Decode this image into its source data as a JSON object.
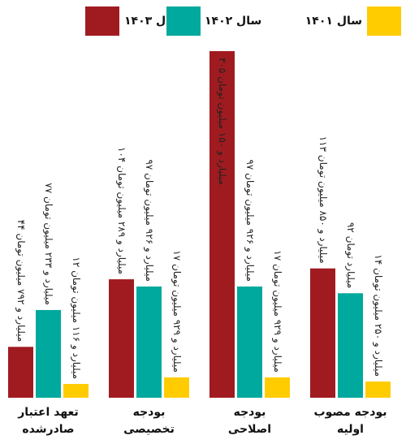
{
  "chart_data": {
    "type": "bar",
    "categories": [
      [
        "تعهد اعتبار",
        "صادرشده"
      ],
      [
        "بودجه",
        "تخصیصی"
      ],
      [
        "بودجه",
        "اصلاحی"
      ],
      [
        "بودجه مصوب",
        "اولیه"
      ]
    ],
    "series": [
      {
        "name": "سال ۱۴۰۳",
        "color": "#a01b20",
        "values": [
          44.792,
          104.289,
          305.15,
          113.85
        ],
        "value_labels": [
          "۴۴ میلیارد و ۷۹۲ میلیون تومان",
          "۱۰۴ میلیارد و ۲۸۹ میلیون تومان",
          "۳۰۵ میلیارد و ۱۵۰ میلیون تومان",
          "۱۱۳ میلیارد و ۸۵۰ میلیون تومان"
        ]
      },
      {
        "name": "سال ۱۴۰۲",
        "color": "#00a99d",
        "values": [
          77.233,
          97.926,
          97.926,
          92
        ],
        "value_labels": [
          "۷۷ میلیارد و ۲۳۳ میلیون تومان",
          "۹۷ میلیارد و ۹۲۶ میلیون تومان",
          "۹۷ میلیارد و ۹۲۶ میلیون تومان",
          "۹۲ میلیارد تومان"
        ]
      },
      {
        "name": "سال ۱۴۰۱",
        "color": "#ffcc00",
        "values": [
          12.116,
          17.929,
          17.929,
          14.25
        ],
        "value_labels": [
          "۱۲ میلیارد و ۱۱۶ میلیون تومان",
          "۱۷ میلیارد و ۹۲۹ میلیون تومان",
          "۱۷ میلیارد و ۹۲۹ میلیون تومان",
          "۱۴ میلیارد و ۲۵۰ میلیون تومان"
        ]
      }
    ]
  }
}
